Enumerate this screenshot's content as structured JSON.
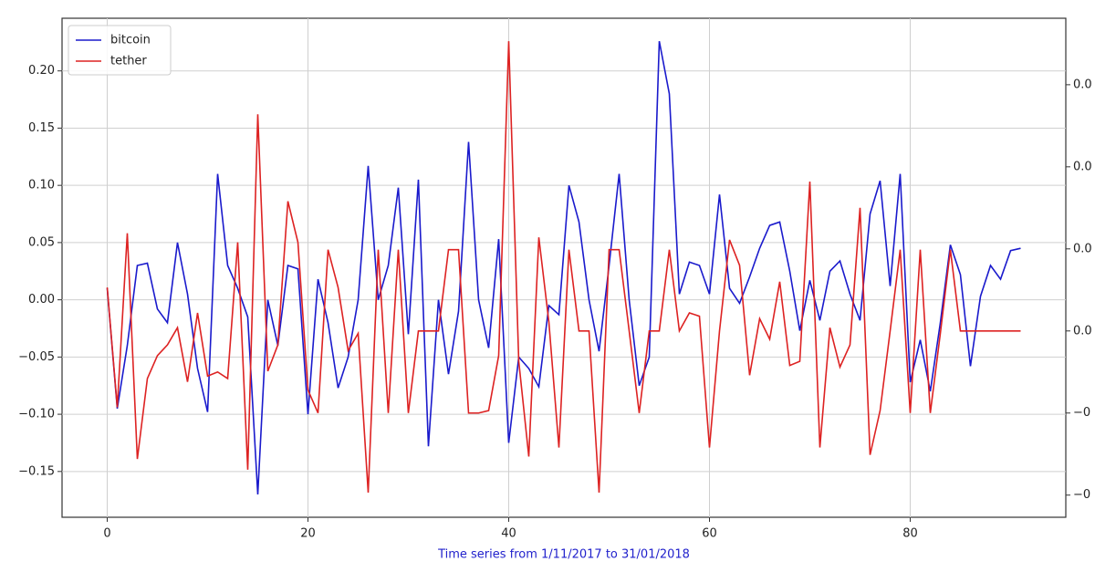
{
  "chart_data": {
    "type": "line",
    "xlabel": "Time series from 1/11/2017 to 31/01/2018",
    "xlabel_color": "#2222cc",
    "x": [
      0,
      1,
      2,
      3,
      4,
      5,
      6,
      7,
      8,
      9,
      10,
      11,
      12,
      13,
      14,
      15,
      16,
      17,
      18,
      19,
      20,
      21,
      22,
      23,
      24,
      25,
      26,
      27,
      28,
      29,
      30,
      31,
      32,
      33,
      34,
      35,
      36,
      37,
      38,
      39,
      40,
      41,
      42,
      43,
      44,
      45,
      46,
      47,
      48,
      49,
      50,
      51,
      52,
      53,
      54,
      55,
      56,
      57,
      58,
      59,
      60,
      61,
      62,
      63,
      64,
      65,
      66,
      67,
      68,
      69,
      70,
      71,
      72,
      73,
      74,
      75,
      76,
      77,
      78,
      79,
      80,
      81,
      82,
      83,
      84,
      85,
      86,
      87,
      88,
      89,
      90,
      91
    ],
    "xlim": [
      -4.5,
      95.5
    ],
    "xticks": [
      0,
      20,
      40,
      60,
      80
    ],
    "ylim": [
      -0.19,
      0.246
    ],
    "yticks": [
      {
        "value": -0.15,
        "label": "−0.15"
      },
      {
        "value": -0.1,
        "label": "−0.10"
      },
      {
        "value": -0.05,
        "label": "−0.05"
      },
      {
        "value": 0,
        "label": "0.00"
      },
      {
        "value": 0.05,
        "label": "0.05"
      },
      {
        "value": 0.1,
        "label": "0.10"
      },
      {
        "value": 0.15,
        "label": "0.15"
      },
      {
        "value": 0.2,
        "label": "0.20"
      }
    ],
    "y2lim": [
      -0.0227,
      0.0381
    ],
    "y2ticks": [
      {
        "value": -0.02,
        "label": "−0"
      },
      {
        "value": -0.01,
        "label": "−0"
      },
      {
        "value": 0,
        "label": "0.0"
      },
      {
        "value": 0.01,
        "label": "0.0"
      },
      {
        "value": 0.02,
        "label": "0.0"
      },
      {
        "value": 0.03,
        "label": "0.0"
      }
    ],
    "grid": true,
    "legend": "upper left",
    "series": [
      {
        "name": "bitcoin",
        "color": "#1a1acc",
        "values": [
          0.01,
          -0.095,
          -0.04,
          0.03,
          0.032,
          -0.008,
          -0.02,
          0.05,
          0.005,
          -0.06,
          -0.098,
          0.11,
          0.03,
          0.01,
          -0.015,
          -0.17,
          0.0,
          -0.04,
          0.03,
          0.027,
          -0.1,
          0.018,
          -0.02,
          -0.077,
          -0.05,
          0.0,
          0.117,
          0.0,
          0.03,
          0.098,
          -0.03,
          0.105,
          -0.128,
          0.0,
          -0.065,
          -0.01,
          0.138,
          0.0,
          -0.042,
          0.053,
          -0.125,
          -0.05,
          -0.06,
          -0.076,
          -0.005,
          -0.013,
          0.1,
          0.068,
          0.0,
          -0.045,
          0.03,
          0.11,
          0.0,
          -0.075,
          -0.05,
          0.226,
          0.18,
          0.005,
          0.033,
          0.03,
          0.005,
          0.092,
          0.01,
          -0.003,
          0.02,
          0.045,
          0.065,
          0.068,
          0.025,
          -0.027,
          0.017,
          -0.018,
          0.025,
          0.034,
          0.005,
          -0.018,
          0.075,
          0.104,
          0.012,
          0.11,
          -0.072,
          -0.035,
          -0.08,
          -0.02,
          0.048,
          0.022,
          -0.058,
          0.003,
          0.03,
          0.018,
          0.043,
          0.045
        ]
      },
      {
        "name": "tether",
        "color": "#dd2222",
        "axis": "y2",
        "values": [
          0.0053,
          -0.0093,
          0.0119,
          -0.0156,
          -0.0058,
          -0.003,
          -0.0017,
          0.0004,
          -0.0062,
          0.0022,
          -0.0055,
          -0.005,
          -0.0058,
          0.0108,
          -0.0169,
          0.0264,
          -0.0049,
          -0.0017,
          0.0158,
          0.0108,
          -0.0072,
          -0.01,
          0.0099,
          0.0053,
          -0.0024,
          -0.0003,
          -0.0197,
          0.0099,
          -0.01,
          0.0099,
          -0.01,
          0.0,
          0.0,
          0.0,
          0.0099,
          0.0099,
          -0.01,
          -0.01,
          -0.0097,
          -0.003,
          0.0353,
          -0.0037,
          -0.0153,
          0.0114,
          0.0011,
          -0.0142,
          0.0099,
          0.0,
          0.0,
          -0.0197,
          0.0099,
          0.0099,
          0.0,
          -0.01,
          0.0,
          0.0,
          0.0099,
          0.0,
          0.0022,
          0.0018,
          -0.0142,
          0.0,
          0.0111,
          0.008,
          -0.0054,
          0.0015,
          -0.001,
          0.006,
          -0.0042,
          -0.0037,
          0.0182,
          -0.0142,
          0.0004,
          -0.0044,
          -0.0017,
          0.015,
          -0.0151,
          -0.0097,
          0.0,
          0.0099,
          -0.01,
          0.0099,
          -0.01,
          -0.0003,
          0.0099,
          0.0,
          0.0,
          0.0,
          0.0,
          0.0,
          0.0,
          0.0
        ]
      }
    ]
  }
}
